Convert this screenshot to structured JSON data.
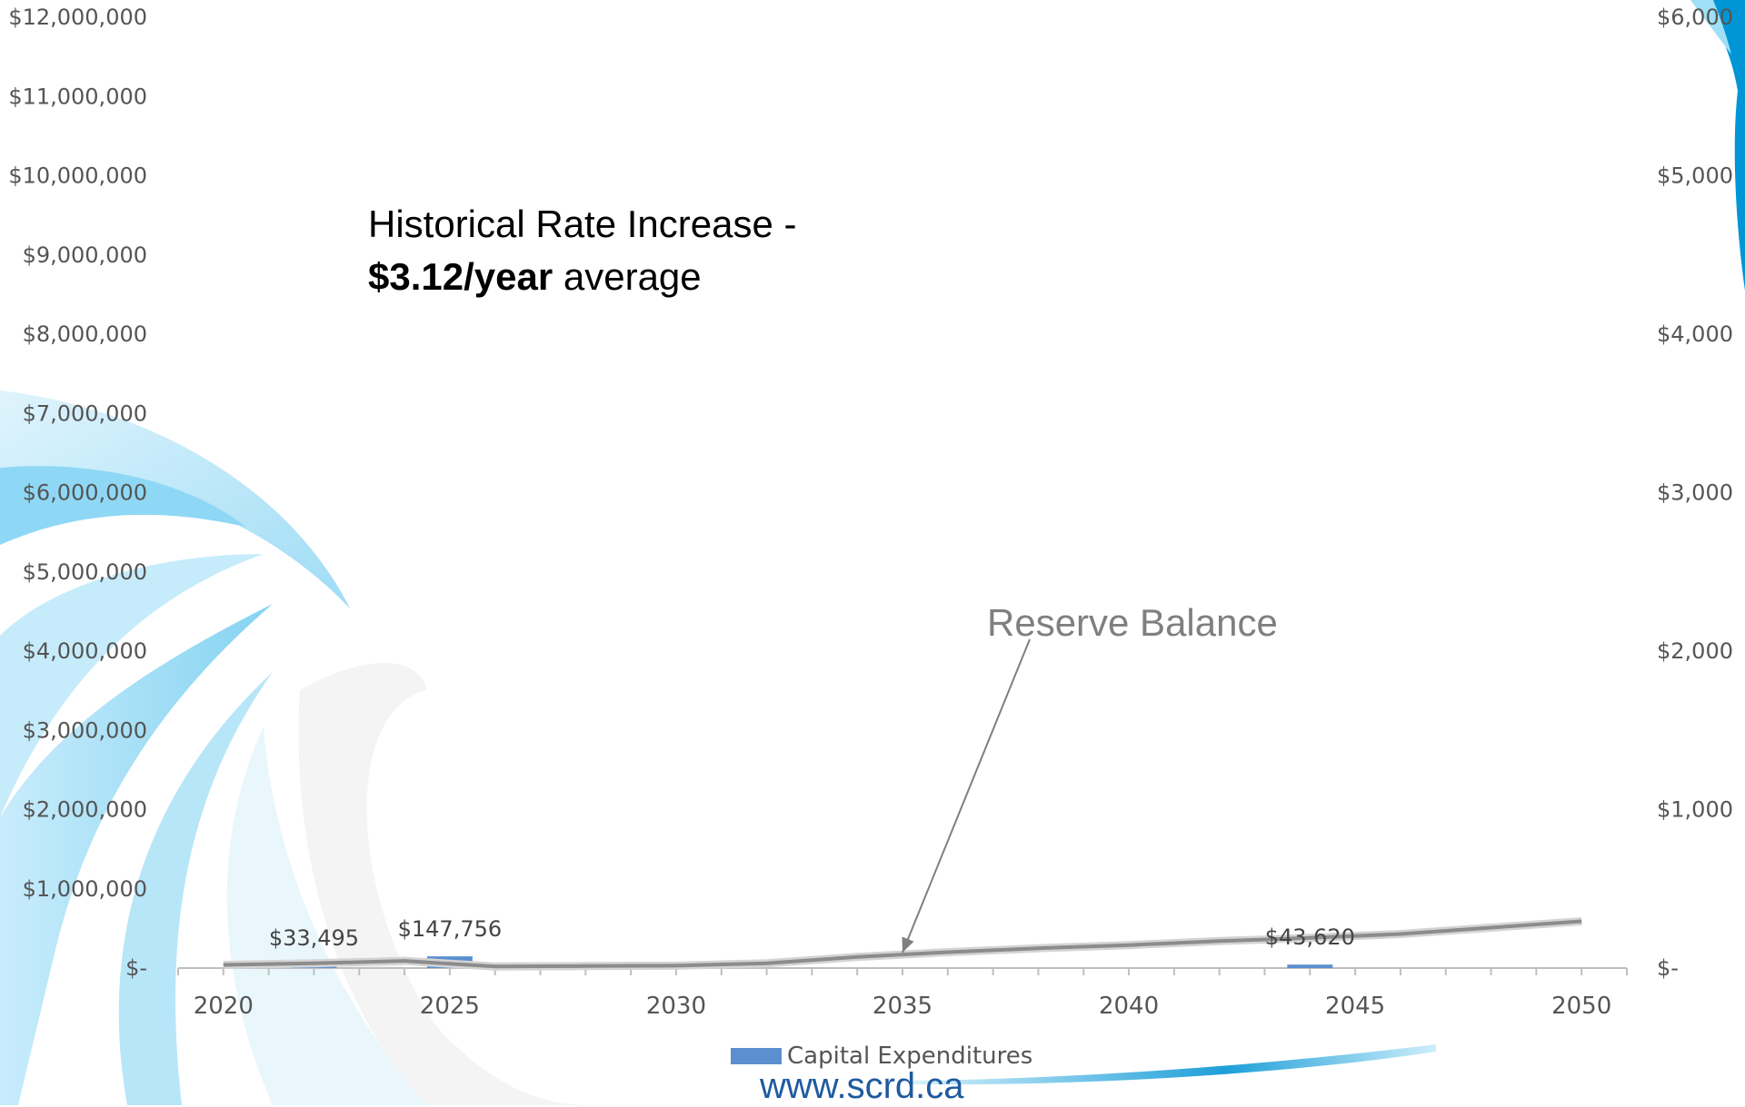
{
  "chart_data": {
    "type": "bar",
    "title": "",
    "xlabel": "",
    "ylabel": "",
    "x_ticks": [
      "2020",
      "2025",
      "2030",
      "2035",
      "2040",
      "2045",
      "2050"
    ],
    "xlim": [
      2019,
      2051
    ],
    "y_left_ticks": [
      "$12,000,000",
      "$11,000,000",
      "$10,000,000",
      "$9,000,000",
      "$8,000,000",
      "$7,000,000",
      "$6,000,000",
      "$5,000,000",
      "$4,000,000",
      "$3,000,000",
      "$2,000,000",
      "$1,000,000",
      "$-"
    ],
    "y_left_lim": [
      0,
      12000000
    ],
    "y_right_ticks": [
      "$6,000",
      "$5,000",
      "$4,000",
      "$3,000",
      "$2,000",
      "$1,000",
      "$-"
    ],
    "y_right_lim": [
      0,
      6000
    ],
    "series": [
      {
        "name": "Capital Expenditures",
        "type": "bar",
        "axis": "left",
        "color": "#5b8fd0",
        "points": [
          {
            "x": 2022,
            "y": 33495,
            "label": "$33,495"
          },
          {
            "x": 2025,
            "y": 147756,
            "label": "$147,756"
          },
          {
            "x": 2044,
            "y": 43620,
            "label": "$43,620"
          }
        ]
      },
      {
        "name": "Reserve Balance",
        "type": "line",
        "axis": "left",
        "color": "#8c8c8c",
        "x": [
          2020,
          2022,
          2024,
          2026,
          2028,
          2030,
          2032,
          2034,
          2036,
          2038,
          2040,
          2042,
          2044,
          2046,
          2048,
          2050
        ],
        "y": [
          40000,
          60000,
          90000,
          20000,
          25000,
          30000,
          60000,
          140000,
          200000,
          250000,
          290000,
          340000,
          380000,
          430000,
          510000,
          590000
        ]
      }
    ],
    "annotations": {
      "rate_line1": "Historical Rate Increase -",
      "rate_bold": "$3.12/year",
      "rate_rest": "average",
      "reserve_label": "Reserve Balance",
      "reserve_arrow_target": {
        "x": 2035,
        "y": 150000
      }
    },
    "legend": {
      "position": "bottom",
      "items": [
        "Capital Expenditures"
      ]
    }
  },
  "footer": {
    "url": "www.scrd.ca"
  },
  "colors": {
    "bar": "#5b8fd0",
    "line": "#8c8c8c",
    "decor_blue": "#0096d6",
    "url": "#1f5aa0"
  }
}
